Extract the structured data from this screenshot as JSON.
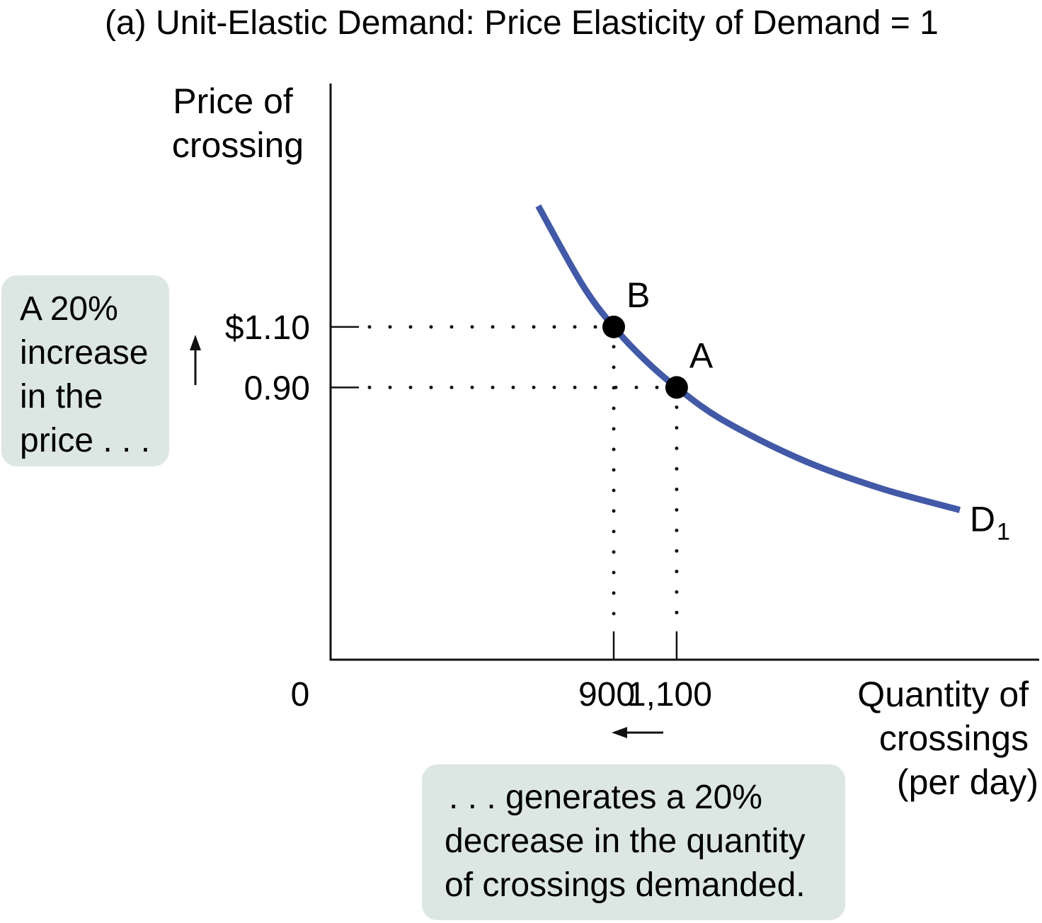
{
  "chart_data": {
    "type": "line",
    "title": "(a)   Unit-Elastic Demand: Price Elasticity of Demand = 1",
    "ylabel": [
      "Price of",
      "crossing"
    ],
    "xlabel": [
      "Quantity of",
      "crossings",
      "(per day)"
    ],
    "origin_label": "0",
    "xlim": [
      0,
      2250
    ],
    "ylim": [
      0,
      1.9
    ],
    "y_ticks": [
      {
        "value": 1.1,
        "label": "$1.10"
      },
      {
        "value": 0.9,
        "label": "0.90"
      }
    ],
    "x_ticks": [
      {
        "value": 900,
        "label": "900"
      },
      {
        "value": 1100,
        "label": "1,100"
      }
    ],
    "grid": false,
    "legend": "none",
    "series": [
      {
        "name": "D",
        "subscript": "1",
        "color": "#4159a7",
        "x": [
          660,
          800,
          900,
          1000,
          1100,
          1250,
          1500,
          1750,
          2000
        ],
        "y": [
          1.5,
          1.24,
          1.1,
          0.99,
          0.9,
          0.79,
          0.66,
          0.566,
          0.495
        ]
      }
    ],
    "points": [
      {
        "label": "B",
        "x": 900,
        "y": 1.1
      },
      {
        "label": "A",
        "x": 1100,
        "y": 0.9
      }
    ],
    "annotations": {
      "price_note": [
        "A 20%",
        "increase",
        "in the",
        "price . . ."
      ],
      "quantity_note": [
        ". . . generates a 20%",
        "decrease in the quantity",
        "of crossings demanded."
      ],
      "box_color": "#dce6e3"
    }
  }
}
